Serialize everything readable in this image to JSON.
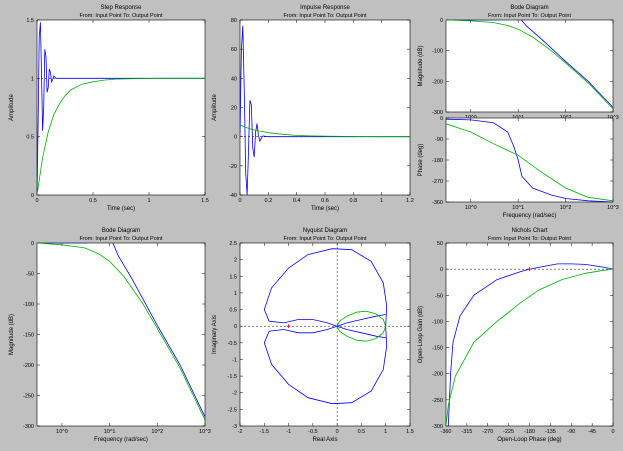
{
  "figure": {
    "background": "#c0c0c0",
    "axes_background": "#ffffff",
    "series_colors": {
      "blue": "#0000ff",
      "green": "#00b000"
    },
    "marker_color": "#ff0000"
  },
  "chart_data": [
    {
      "type": "line",
      "title": "Step Response",
      "subtitle": "From: Input Point  To: Output Point",
      "xlabel": "Time (sec)",
      "ylabel": "Amplitude",
      "xlim": [
        0,
        1.5
      ],
      "ylim": [
        0,
        1.5
      ],
      "xticks": [
        0,
        0.5,
        1,
        1.5
      ],
      "xticklabels": [
        "0",
        "0.5",
        "1",
        "1.5"
      ],
      "yticks": [
        0,
        0.5,
        1,
        1.5
      ],
      "yticklabels": [
        "0",
        "0.5",
        "1",
        "1.5"
      ],
      "hlines": [
        {
          "y": 1,
          "style": "dotted"
        }
      ],
      "series": [
        {
          "color": "blue",
          "x": [
            0,
            0.01,
            0.02,
            0.03,
            0.04,
            0.05,
            0.06,
            0.07,
            0.08,
            0.09,
            0.1,
            0.11,
            0.12,
            0.13,
            0.14,
            0.15,
            0.17,
            0.2,
            0.25,
            0.3,
            0.5,
            1,
            1.5
          ],
          "y": [
            0,
            0.6,
            1.35,
            1.48,
            1.05,
            0.55,
            0.75,
            1.25,
            1.18,
            0.88,
            0.92,
            1.08,
            1.05,
            0.97,
            0.99,
            1.02,
            1,
            1,
            1,
            1,
            1,
            1,
            1
          ]
        },
        {
          "color": "green",
          "x": [
            0,
            0.05,
            0.1,
            0.15,
            0.2,
            0.25,
            0.3,
            0.4,
            0.5,
            0.6,
            0.7,
            0.8,
            1,
            1.2,
            1.5
          ],
          "y": [
            0,
            0.32,
            0.54,
            0.69,
            0.78,
            0.85,
            0.9,
            0.95,
            0.97,
            0.985,
            0.993,
            0.996,
            0.999,
            1,
            1
          ]
        }
      ]
    },
    {
      "type": "line",
      "title": "Impulse Response",
      "subtitle": "From: Input Point  To: Output Point",
      "xlabel": "Time (sec)",
      "ylabel": "Amplitude",
      "xlim": [
        0,
        1.2
      ],
      "ylim": [
        -40,
        80
      ],
      "xticks": [
        0,
        0.2,
        0.4,
        0.6,
        0.8,
        1,
        1.2
      ],
      "xticklabels": [
        "0",
        "0.2",
        "0.4",
        "0.6",
        "0.8",
        "1",
        "1.2"
      ],
      "yticks": [
        -40,
        -20,
        0,
        20,
        40,
        60,
        80
      ],
      "yticklabels": [
        "-40",
        "-20",
        "0",
        "20",
        "40",
        "60",
        "80"
      ],
      "hlines": [
        {
          "y": 0,
          "style": "dotted"
        }
      ],
      "series": [
        {
          "color": "blue",
          "x": [
            0,
            0.01,
            0.02,
            0.03,
            0.04,
            0.05,
            0.06,
            0.07,
            0.08,
            0.09,
            0.1,
            0.11,
            0.12,
            0.13,
            0.14,
            0.16,
            0.2,
            0.3,
            0.5,
            1.2
          ],
          "y": [
            0,
            60,
            76,
            30,
            -25,
            -40,
            -10,
            25,
            22,
            -8,
            -14,
            3,
            9,
            1,
            -3,
            0.5,
            0,
            0,
            0,
            0
          ]
        },
        {
          "color": "green",
          "x": [
            0,
            0.05,
            0.1,
            0.15,
            0.2,
            0.3,
            0.4,
            0.5,
            0.6,
            0.8,
            1.0,
            1.2
          ],
          "y": [
            8,
            6,
            4.6,
            3.6,
            2.7,
            1.6,
            0.9,
            0.5,
            0.3,
            0.1,
            0,
            0
          ]
        }
      ]
    },
    {
      "type": "line",
      "title": "Bode Diagram",
      "subtitle": "From: Input Point  To: Output Point",
      "xlabel": "Frequency  (rad/sec)",
      "ylabel": "Magnitude (dB)",
      "xscale": "log",
      "xlim": [
        0.3,
        1000
      ],
      "ylim": [
        -300,
        0
      ],
      "xticks": [
        1,
        10,
        100,
        1000
      ],
      "xticklabels": [
        "10^0",
        "10^1",
        "10^2",
        "10^3"
      ],
      "yticks": [
        -300,
        -200,
        -100,
        0
      ],
      "yticklabels": [
        "-300",
        "-200",
        "-100",
        "0"
      ],
      "series": [
        {
          "color": "blue",
          "x": [
            0.3,
            1,
            3,
            6,
            9,
            11,
            15,
            30,
            100,
            300,
            1000
          ],
          "y": [
            0,
            0,
            0,
            2,
            10,
            5,
            -20,
            -60,
            -135,
            -200,
            -285
          ]
        },
        {
          "color": "green",
          "x": [
            0.3,
            1,
            3,
            6,
            10,
            20,
            50,
            100,
            300,
            1000
          ],
          "y": [
            0,
            -3,
            -8,
            -18,
            -30,
            -55,
            -100,
            -140,
            -205,
            -290
          ]
        }
      ]
    },
    {
      "type": "line",
      "subtitle": "",
      "xlabel": "Frequency  (rad/sec)",
      "ylabel": "Phase (deg)",
      "xscale": "log",
      "xlim": [
        0.3,
        1000
      ],
      "ylim": [
        -360,
        0
      ],
      "xticks": [
        1,
        10,
        100,
        1000
      ],
      "xticklabels": [
        "10^0",
        "10^1",
        "10^2",
        "10^3"
      ],
      "yticks": [
        -360,
        -270,
        -180,
        -90,
        0
      ],
      "yticklabels": [
        "-360",
        "-270",
        "-180",
        "-90",
        "0"
      ],
      "series": [
        {
          "color": "blue",
          "x": [
            0.3,
            1,
            3,
            6,
            8,
            10,
            12,
            20,
            50,
            100,
            300,
            1000
          ],
          "y": [
            -5,
            -8,
            -20,
            -60,
            -120,
            -180,
            -250,
            -300,
            -330,
            -345,
            -355,
            -360
          ]
        },
        {
          "color": "green",
          "x": [
            0.3,
            1,
            3,
            10,
            30,
            100,
            300,
            1000
          ],
          "y": [
            -25,
            -60,
            -110,
            -160,
            -230,
            -300,
            -340,
            -355
          ]
        }
      ]
    },
    {
      "type": "line",
      "title": "Bode Diagram",
      "subtitle": "From: Input Point  To: Output Point",
      "xlabel": "Frequency  (rad/sec)",
      "ylabel": "Magnitude (dB)",
      "xscale": "log",
      "xlim": [
        0.3,
        1000
      ],
      "ylim": [
        -300,
        0
      ],
      "xticks": [
        1,
        10,
        100,
        1000
      ],
      "xticklabels": [
        "10^0",
        "10^1",
        "10^2",
        "10^3"
      ],
      "yticks": [
        -300,
        -250,
        -200,
        -150,
        -100,
        -50,
        0
      ],
      "yticklabels": [
        "-300",
        "-250",
        "-200",
        "-150",
        "-100",
        "-50",
        "0"
      ],
      "series": [
        {
          "color": "blue",
          "x": [
            0.3,
            1,
            3,
            6,
            9,
            11,
            15,
            30,
            100,
            300,
            1000
          ],
          "y": [
            0,
            0,
            0,
            2,
            10,
            5,
            -20,
            -60,
            -135,
            -200,
            -285
          ]
        },
        {
          "color": "green",
          "x": [
            0.3,
            1,
            3,
            6,
            10,
            20,
            50,
            100,
            300,
            1000
          ],
          "y": [
            0,
            -3,
            -8,
            -18,
            -30,
            -55,
            -100,
            -140,
            -205,
            -290
          ]
        }
      ]
    },
    {
      "type": "line",
      "title": "Nyquist Diagram",
      "subtitle": "From: Input Point  To: Output Point",
      "xlabel": "Real Axis",
      "ylabel": "Imaginary Axis",
      "xlim": [
        -2,
        1.5
      ],
      "ylim": [
        -3,
        2.5
      ],
      "xticks": [
        -2,
        -1.5,
        -1,
        -0.5,
        0,
        0.5,
        1,
        1.5
      ],
      "xticklabels": [
        "-2",
        "-1.5",
        "-1",
        "-0.5",
        "0",
        "0.5",
        "1",
        "1.5"
      ],
      "yticks": [
        -3,
        -2.5,
        -2,
        -1.5,
        -1,
        -0.5,
        0,
        0.5,
        1,
        1.5,
        2,
        2.5
      ],
      "yticklabels": [
        "-3",
        "-2.5",
        "-2",
        "-1.5",
        "-1",
        "-0.5",
        "0",
        "0.5",
        "1",
        "1.5",
        "2",
        "2.5"
      ],
      "hlines": [
        {
          "y": 0,
          "style": "dotted"
        }
      ],
      "vlines": [
        {
          "x": 0,
          "style": "dotted"
        }
      ],
      "markers": [
        {
          "x": -1,
          "y": 0
        }
      ],
      "series": [
        {
          "color": "blue",
          "x": [
            1,
            1.02,
            0.95,
            0.7,
            0.3,
            -0.1,
            -0.6,
            -1.0,
            -1.35,
            -1.5,
            -1.4,
            -1.1,
            -0.8,
            -0.5,
            -0.2,
            0,
            0.2,
            0.5,
            0.8,
            1.0
          ],
          "y": [
            0,
            0.6,
            1.3,
            1.95,
            2.3,
            2.33,
            2.15,
            1.75,
            1.15,
            0.5,
            0.15,
            0.1,
            0.2,
            0.2,
            0.1,
            0,
            -0.1,
            -0.2,
            -0.3,
            -0.35
          ],
          "mirror": true
        },
        {
          "color": "green",
          "x": [
            1,
            0.95,
            0.8,
            0.6,
            0.4,
            0.2,
            0.05,
            0
          ],
          "y": [
            0,
            0.2,
            0.37,
            0.45,
            0.42,
            0.3,
            0.15,
            0
          ],
          "mirror": true
        }
      ]
    },
    {
      "type": "line",
      "title": "Nichols Chart",
      "subtitle": "From: Input Point  To: Output Point",
      "xlabel": "Open-Loop Phase (deg)",
      "ylabel": "Open-Loop Gain (dB)",
      "xlim": [
        -360,
        0
      ],
      "ylim": [
        -300,
        50
      ],
      "xticks": [
        -360,
        -315,
        -270,
        -225,
        -180,
        -135,
        -90,
        -45,
        0
      ],
      "xticklabels": [
        "-360",
        "-315",
        "-270",
        "-225",
        "-180",
        "-135",
        "-90",
        "-45",
        "0"
      ],
      "yticks": [
        -300,
        -250,
        -200,
        -150,
        -100,
        -50,
        0,
        50
      ],
      "yticklabels": [
        "-300",
        "-250",
        "-200",
        "-150",
        "-100",
        "-50",
        "0",
        "50"
      ],
      "hlines": [
        {
          "y": 0,
          "style": "dotted"
        }
      ],
      "markers": [
        {
          "x": -180,
          "y": 0
        }
      ],
      "series": [
        {
          "color": "blue",
          "x": [
            -355,
            -350,
            -345,
            -330,
            -300,
            -250,
            -200,
            -180,
            -150,
            -120,
            -90,
            -60,
            -30,
            -10,
            0
          ],
          "y": [
            -300,
            -200,
            -140,
            -90,
            -50,
            -20,
            -5,
            0,
            5,
            10,
            10,
            9,
            5,
            2,
            0
          ]
        },
        {
          "color": "green",
          "x": [
            -360,
            -355,
            -340,
            -300,
            -250,
            -200,
            -160,
            -110,
            -60,
            -25,
            0
          ],
          "y": [
            -300,
            -260,
            -205,
            -140,
            -100,
            -65,
            -40,
            -20,
            -8,
            -3,
            0
          ]
        }
      ]
    }
  ]
}
